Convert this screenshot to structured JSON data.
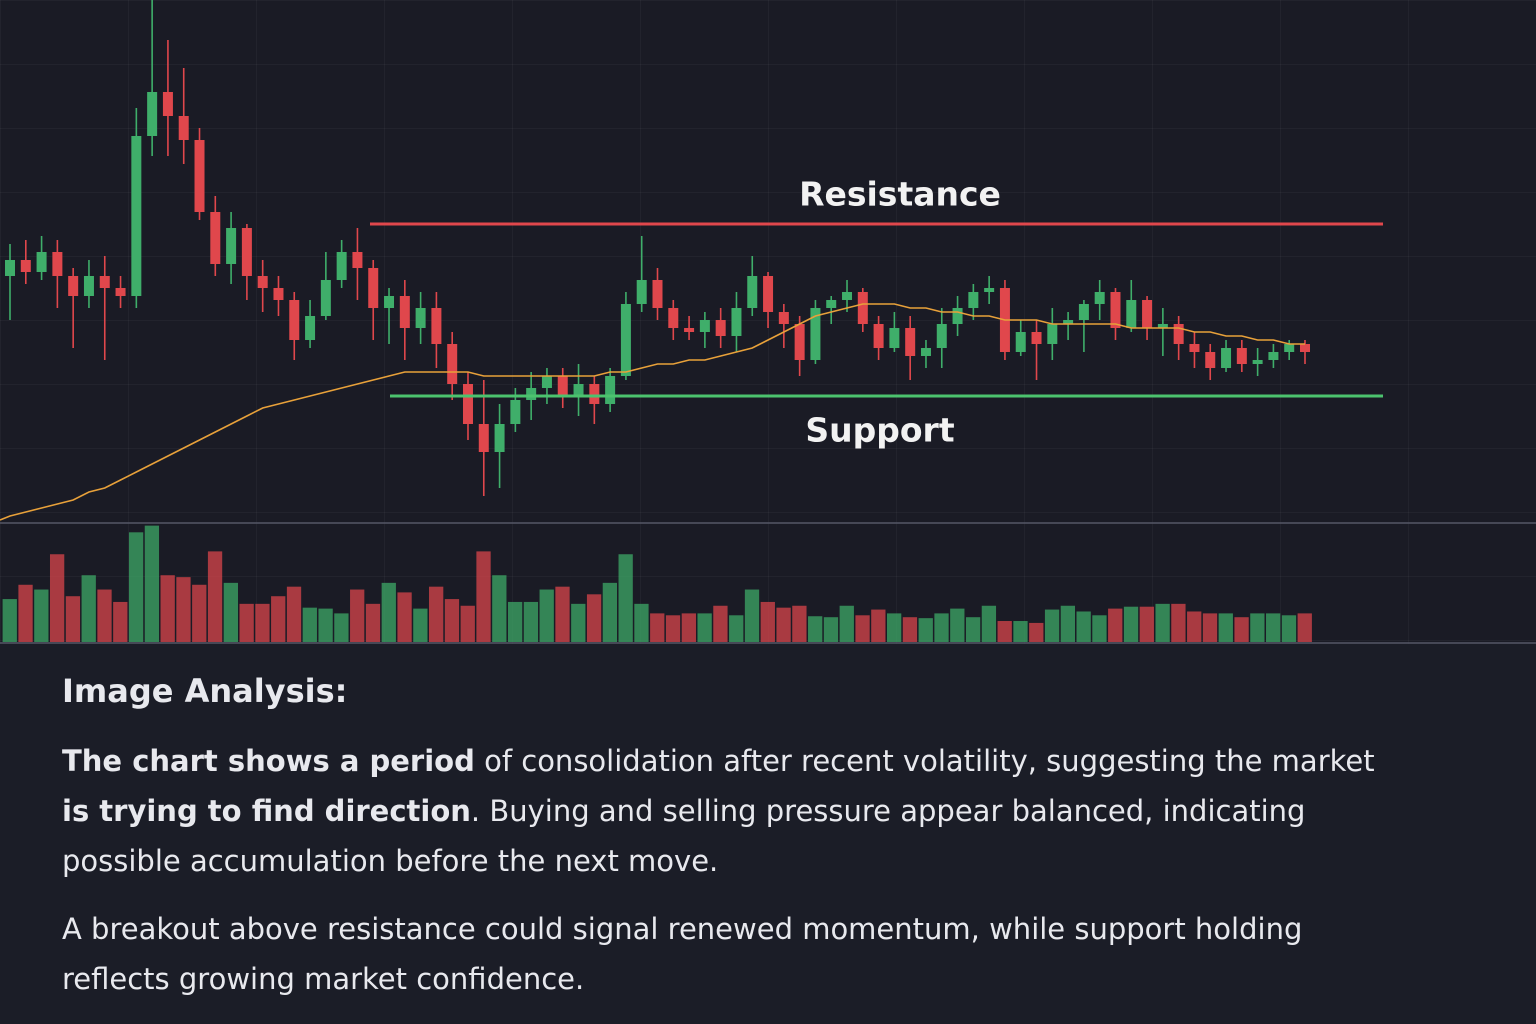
{
  "chart_data": {
    "type": "candlestick",
    "open": [
      66,
      70,
      67,
      72,
      66,
      61,
      66,
      63,
      61,
      101,
      112,
      106,
      100,
      82,
      69,
      78,
      66,
      63,
      60,
      50,
      56,
      65,
      72,
      68,
      58,
      61,
      53,
      58,
      49,
      39,
      29,
      22,
      29,
      35,
      38,
      41,
      36,
      39,
      34,
      41,
      59,
      65,
      58,
      53,
      52,
      55,
      51,
      58,
      66,
      57,
      54,
      45,
      58,
      60,
      62,
      54,
      48,
      53,
      46,
      48,
      54,
      58,
      62,
      63,
      47,
      52,
      49,
      54,
      55,
      59,
      62,
      53,
      60,
      53,
      54,
      49,
      47,
      43,
      48,
      44,
      45,
      47,
      49
    ],
    "high": [
      74,
      75,
      76,
      75,
      68,
      70,
      71,
      66,
      108,
      135,
      125,
      118,
      103,
      86,
      82,
      79,
      70,
      66,
      62,
      60,
      72,
      75,
      78,
      70,
      63,
      65,
      62,
      62,
      52,
      42,
      40,
      34,
      38,
      42,
      43,
      43,
      44,
      41,
      43,
      62,
      76,
      68,
      60,
      56,
      57,
      58,
      62,
      71,
      67,
      59,
      56,
      60,
      61,
      65,
      63,
      56,
      57,
      56,
      50,
      58,
      61,
      64,
      66,
      65,
      55,
      55,
      58,
      57,
      60,
      65,
      63,
      65,
      61,
      58,
      56,
      52,
      49,
      50,
      50,
      48,
      49,
      50,
      50
    ],
    "low": [
      55,
      64,
      65,
      58,
      48,
      58,
      45,
      58,
      58,
      96,
      96,
      94,
      80,
      66,
      64,
      60,
      57,
      56,
      45,
      48,
      55,
      63,
      60,
      50,
      49,
      45,
      49,
      43,
      35,
      25,
      11,
      13,
      27,
      30,
      34,
      33,
      31,
      29,
      32,
      40,
      57,
      55,
      50,
      50,
      48,
      48,
      47,
      56,
      53,
      48,
      41,
      44,
      54,
      57,
      52,
      45,
      47,
      40,
      43,
      43,
      51,
      55,
      59,
      45,
      46,
      40,
      45,
      50,
      47,
      55,
      50,
      52,
      50,
      46,
      45,
      43,
      40,
      42,
      42,
      41,
      43,
      45,
      44
    ],
    "close": [
      70,
      67,
      72,
      66,
      61,
      66,
      63,
      61,
      101,
      112,
      106,
      100,
      82,
      69,
      78,
      66,
      63,
      60,
      50,
      56,
      65,
      72,
      68,
      58,
      61,
      53,
      58,
      49,
      39,
      29,
      22,
      29,
      35,
      38,
      41,
      36,
      39,
      34,
      41,
      59,
      65,
      58,
      53,
      52,
      55,
      51,
      58,
      66,
      57,
      54,
      45,
      58,
      60,
      62,
      54,
      48,
      53,
      46,
      48,
      54,
      58,
      62,
      63,
      47,
      52,
      49,
      54,
      55,
      59,
      62,
      53,
      60,
      53,
      54,
      49,
      47,
      43,
      48,
      44,
      45,
      47,
      49,
      47
    ],
    "moving_average": {
      "color": "#e8a13a",
      "values": [
        6,
        7,
        8,
        9,
        10,
        12,
        13,
        15,
        17,
        19,
        21,
        23,
        25,
        27,
        29,
        31,
        33,
        34,
        35,
        36,
        37,
        38,
        39,
        40,
        41,
        42,
        42,
        42,
        42,
        42,
        41,
        41,
        41,
        41,
        41,
        41,
        41,
        41,
        42,
        42,
        43,
        44,
        44,
        45,
        45,
        46,
        47,
        48,
        50,
        52,
        54,
        56,
        57,
        58,
        59,
        59,
        59,
        58,
        58,
        57,
        57,
        56,
        56,
        55,
        55,
        55,
        54,
        54,
        54,
        54,
        54,
        53,
        53,
        53,
        53,
        52,
        52,
        51,
        51,
        50,
        50,
        49,
        49
      ]
    },
    "volume": [
      45,
      60,
      55,
      92,
      48,
      70,
      55,
      42,
      115,
      122,
      70,
      68,
      60,
      95,
      62,
      40,
      40,
      48,
      58,
      36,
      35,
      30,
      55,
      40,
      62,
      52,
      35,
      58,
      45,
      38,
      95,
      70,
      42,
      42,
      55,
      58,
      40,
      50,
      62,
      92,
      40,
      30,
      28,
      30,
      30,
      38,
      28,
      55,
      42,
      36,
      38,
      27,
      26,
      38,
      28,
      34,
      30,
      26,
      25,
      30,
      35,
      26,
      38,
      22,
      22,
      20,
      34,
      38,
      32,
      28,
      35,
      37,
      37,
      40,
      40,
      32,
      30,
      30,
      26,
      30,
      30,
      28,
      30
    ],
    "volume_ylim": [
      0,
      130
    ],
    "ylim": [
      0,
      135
    ],
    "up_color": "#3fae6a",
    "down_color": "#e0474c",
    "levels": [
      {
        "label": "Resistance",
        "value": 79,
        "color": "#e0474c"
      },
      {
        "label": "Support",
        "value": 36,
        "color": "#4cc36e"
      }
    ]
  },
  "analysis": {
    "title": "Image Analysis:",
    "paragraphs": [
      [
        {
          "text": "The chart shows a period",
          "bold": true
        },
        {
          "text": " of consolidation after recent volatility, suggesting the market ",
          "bold": false
        },
        {
          "text": "is trying to find direction",
          "bold": true
        },
        {
          "text": ". Buying and selling pressure appear balanced, indicating possible accumulation before the next move.",
          "bold": false
        }
      ],
      [
        {
          "text": "A breakout above resistance could signal renewed momentum, while support holding reflects growing market confidence.",
          "bold": false
        }
      ]
    ]
  }
}
